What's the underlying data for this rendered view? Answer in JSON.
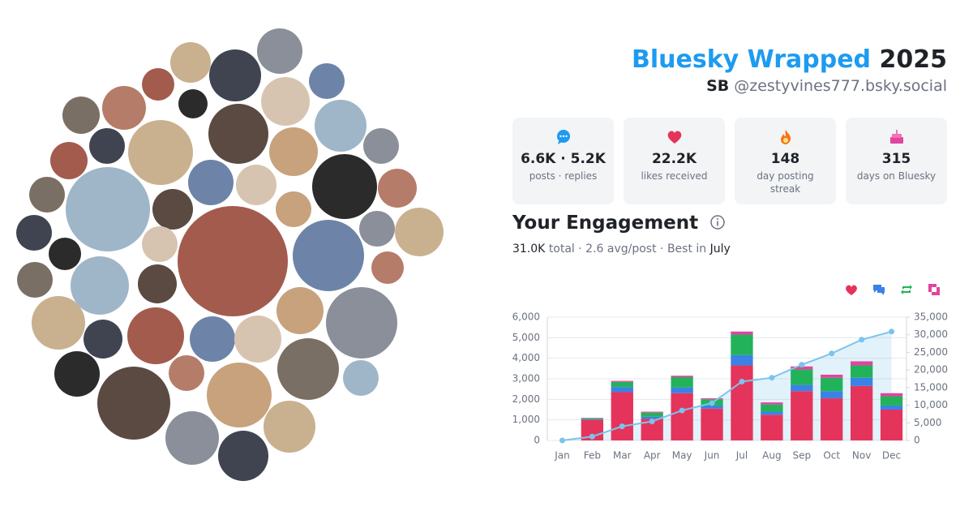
{
  "header": {
    "title": "Bluesky Wrapped",
    "year": "2025",
    "name": "SB",
    "handle": "@zestyvines777.bsky.social"
  },
  "stats": [
    {
      "value": "6.6K · 5.2K",
      "label": "posts · replies"
    },
    {
      "value": "22.2K",
      "label": "likes received"
    },
    {
      "value": "148",
      "label": "day posting streak"
    },
    {
      "value": "315",
      "label": "days on Bluesky"
    }
  ],
  "section_title": "Your Engagement",
  "summary": {
    "total": "31.0K",
    "middle": "total · 2.6 avg/post · Best in",
    "best": "July"
  },
  "chart_data": {
    "type": "stacked_bar_line",
    "categories": [
      "Jan",
      "Feb",
      "Mar",
      "Apr",
      "May",
      "Jun",
      "Jul",
      "Aug",
      "Sep",
      "Oct",
      "Nov",
      "Dec"
    ],
    "series": [
      {
        "color": "#e5345b",
        "values": [
          0,
          1000,
          2350,
          1050,
          2300,
          1550,
          3650,
          1250,
          2400,
          2050,
          2650,
          1500
        ]
      },
      {
        "color": "#3b82e6",
        "values": [
          0,
          30,
          250,
          100,
          280,
          150,
          500,
          150,
          300,
          350,
          400,
          200
        ]
      },
      {
        "color": "#22b35a",
        "values": [
          0,
          50,
          250,
          200,
          500,
          300,
          1000,
          350,
          750,
          650,
          600,
          450
        ]
      },
      {
        "color": "#e0459f",
        "values": [
          0,
          20,
          50,
          50,
          70,
          50,
          150,
          100,
          150,
          150,
          200,
          150
        ]
      },
      {
        "color": "#7cc4ec",
        "axis": "y2",
        "values": [
          0,
          1100,
          4000,
          5400,
          8500,
          10600,
          16700,
          17800,
          21500,
          24700,
          28600,
          30900
        ]
      }
    ],
    "ylim": [
      0,
      6000
    ],
    "yticks": [
      0,
      {
        "value": 1000,
        "label": "1,000"
      },
      {
        "value": 2000,
        "label": "2,000"
      },
      {
        "value": 3000,
        "label": "3,000"
      },
      {
        "value": 4000,
        "label": "4,000"
      },
      {
        "value": 5000,
        "label": "5,000"
      },
      {
        "value": 6000,
        "label": "6,000"
      }
    ],
    "y2lim": [
      0,
      35000
    ],
    "y2ticks": [
      0,
      {
        "value": 5000,
        "label": "5,000"
      },
      {
        "value": 10000,
        "label": "10,000"
      },
      {
        "value": 15000,
        "label": "15,000"
      },
      {
        "value": 20000,
        "label": "20,000"
      },
      {
        "value": 25000,
        "label": "25,000"
      },
      {
        "value": 30000,
        "label": "30,000"
      },
      {
        "value": 35000,
        "label": "35,000"
      }
    ],
    "grid": true
  }
}
